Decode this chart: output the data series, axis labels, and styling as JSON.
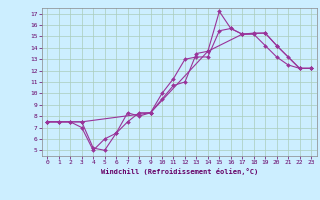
{
  "background_color": "#cceeff",
  "grid_color": "#aaccbb",
  "line_color": "#993399",
  "xlabel": "Windchill (Refroidissement éolien,°C)",
  "xlabel_color": "#660066",
  "tick_color": "#660066",
  "spine_color": "#888888",
  "xlim": [
    -0.5,
    23.5
  ],
  "ylim": [
    4.5,
    17.5
  ],
  "xticks": [
    0,
    1,
    2,
    3,
    4,
    5,
    6,
    7,
    8,
    9,
    10,
    11,
    12,
    13,
    14,
    15,
    16,
    17,
    18,
    19,
    20,
    21,
    22,
    23
  ],
  "yticks": [
    5,
    6,
    7,
    8,
    9,
    10,
    11,
    12,
    13,
    14,
    15,
    16,
    17
  ],
  "line1_x": [
    0,
    1,
    2,
    3,
    4,
    5,
    6,
    7,
    8,
    9,
    10,
    11,
    12,
    13,
    14,
    15,
    16,
    17,
    18,
    19,
    20,
    21,
    22,
    23
  ],
  "line1_y": [
    7.5,
    7.5,
    7.5,
    7.0,
    5.0,
    6.0,
    6.5,
    8.3,
    8.0,
    8.3,
    9.5,
    10.7,
    11.0,
    13.5,
    13.7,
    17.2,
    15.7,
    15.2,
    15.2,
    14.2,
    13.2,
    12.5,
    12.2,
    12.2
  ],
  "line2_x": [
    0,
    1,
    2,
    3,
    4,
    5,
    6,
    7,
    8,
    9,
    10,
    11,
    12,
    13,
    14,
    15,
    16,
    17,
    18,
    19,
    20,
    21,
    22,
    23
  ],
  "line2_y": [
    7.5,
    7.5,
    7.5,
    7.5,
    5.2,
    5.0,
    6.5,
    7.5,
    8.3,
    8.3,
    10.0,
    11.3,
    13.0,
    13.2,
    13.2,
    15.5,
    15.7,
    15.2,
    15.3,
    15.3,
    14.2,
    13.2,
    12.2,
    12.2
  ],
  "line3_x": [
    0,
    3,
    9,
    14,
    17,
    19,
    20,
    22,
    23
  ],
  "line3_y": [
    7.5,
    7.5,
    8.3,
    13.7,
    15.2,
    15.3,
    14.2,
    12.2,
    12.2
  ]
}
